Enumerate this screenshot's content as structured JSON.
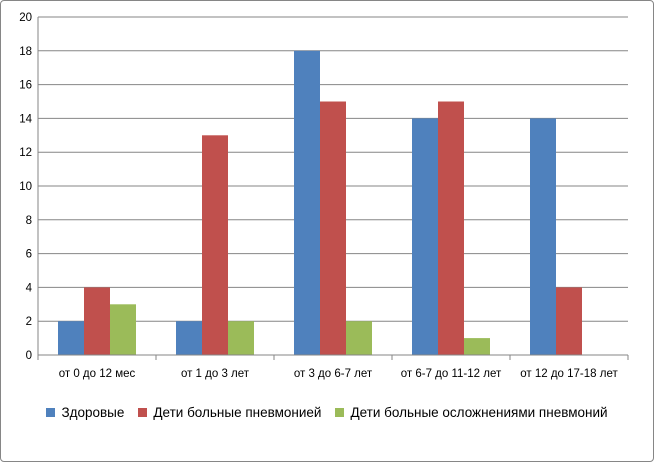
{
  "chart_data": {
    "type": "bar",
    "title": "",
    "xlabel": "",
    "ylabel": "",
    "categories": [
      "от 0 до 12 мес",
      "от 1 до 3 лет",
      "от 3 до 6-7 лет",
      "от 6-7 до 11-12 лет",
      "от 12 до 17-18 лет"
    ],
    "series": [
      {
        "name": "Здоровые",
        "color": "#4F81BD",
        "values": [
          2,
          2,
          18,
          14,
          14
        ]
      },
      {
        "name": "Дети больные пневмонией",
        "color": "#C0504D",
        "values": [
          4,
          13,
          15,
          15,
          4
        ]
      },
      {
        "name": "Дети больные осложнениями пневмоний",
        "color": "#9BBB59",
        "values": [
          3,
          2,
          2,
          1,
          0
        ]
      }
    ],
    "ylim": [
      0,
      20
    ],
    "yticks": [
      0,
      2,
      4,
      6,
      8,
      10,
      12,
      14,
      16,
      18,
      20
    ],
    "grid": true,
    "legend": "bottom"
  }
}
